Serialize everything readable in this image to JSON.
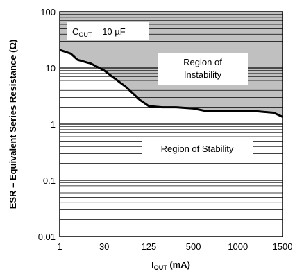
{
  "chart_data": {
    "type": "line",
    "title": "",
    "xlabel": {
      "main": "I",
      "sub": "OUT",
      "unit": " (mA)"
    },
    "ylabel": "ESR – Equivalent Series Resistance (Ω)",
    "x_tick_labels": [
      "1",
      "30",
      "125",
      "500",
      "1000",
      "1500"
    ],
    "y_scale": "log",
    "ylim": [
      0.01,
      100
    ],
    "y_tick_labels": [
      "100",
      "10",
      "1",
      "0.1",
      "0.01"
    ],
    "grid": "horizontal log minor lines",
    "capacitance_label": {
      "main": "C",
      "sub": "OUT",
      "value": " = 10 µF"
    },
    "region_upper": {
      "line1": "Region of",
      "line2": "Instability",
      "fill": "#c0c0c0"
    },
    "region_lower": {
      "line1": "Region of Stability",
      "fill": "#ffffff"
    },
    "series": [
      {
        "x_ticks_position": [
          0,
          0.25,
          0.4,
          0.7,
          1.0,
          1.18,
          1.5,
          1.8,
          2.0,
          2.3,
          2.6,
          3.0,
          3.3,
          3.6,
          4.0,
          4.4,
          4.8,
          5.0
        ],
        "values": [
          21,
          18,
          14,
          12,
          9,
          7,
          4.5,
          2.7,
          2.1,
          2.0,
          2.0,
          1.9,
          1.7,
          1.7,
          1.7,
          1.7,
          1.6,
          1.35
        ]
      }
    ]
  }
}
